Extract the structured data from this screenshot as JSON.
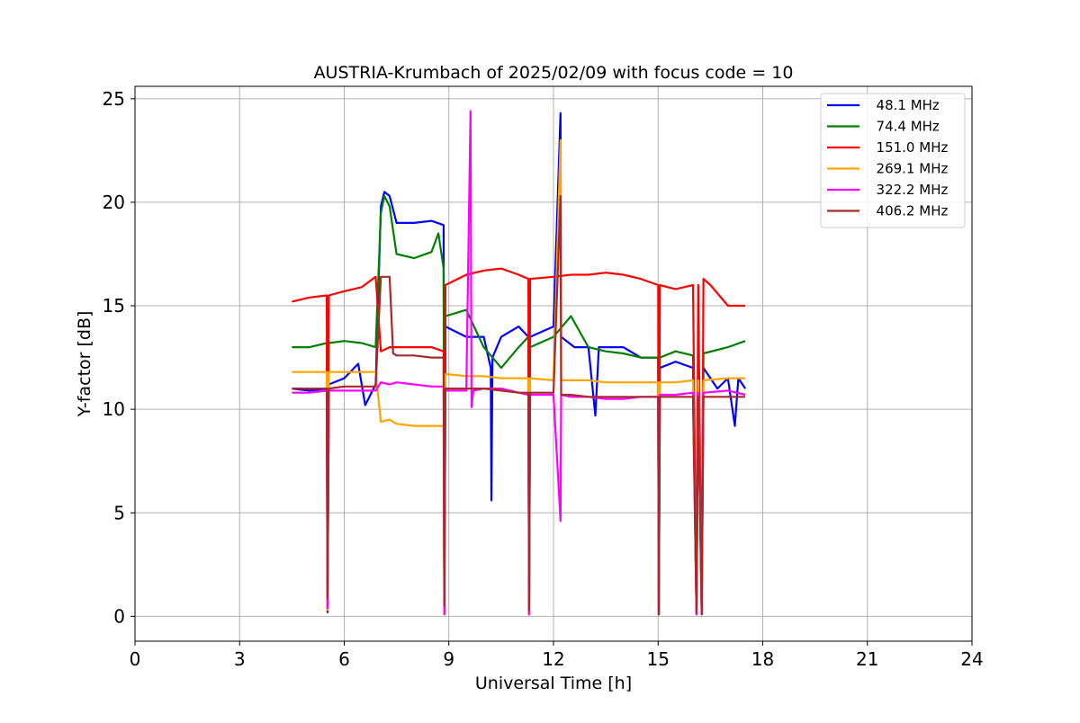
{
  "chart_data": {
    "type": "line",
    "title": "AUSTRIA-Krumbach of 2025/02/09 with focus code = 10",
    "xlabel": "Universal Time [h]",
    "ylabel": "Y-factor [dB]",
    "xlim": [
      0,
      24
    ],
    "ylim": [
      -1.2,
      25.6
    ],
    "xticks": [
      0,
      3,
      6,
      9,
      12,
      15,
      18,
      21,
      24
    ],
    "yticks": [
      0,
      5,
      10,
      15,
      20,
      25
    ],
    "grid": true,
    "legend_position": "top-right",
    "series": [
      {
        "name": "  48.1 MHz",
        "color": "#0000ff",
        "points": [
          [
            4.5,
            11.0
          ],
          [
            5.0,
            10.9
          ],
          [
            5.5,
            11.0
          ],
          [
            5.52,
            0.2
          ],
          [
            5.56,
            11.2
          ],
          [
            6.0,
            11.5
          ],
          [
            6.4,
            12.2
          ],
          [
            6.6,
            10.2
          ],
          [
            6.9,
            11.2
          ],
          [
            7.05,
            19.8
          ],
          [
            7.15,
            20.5
          ],
          [
            7.3,
            20.3
          ],
          [
            7.5,
            19.0
          ],
          [
            8.0,
            19.0
          ],
          [
            8.5,
            19.1
          ],
          [
            8.85,
            18.9
          ],
          [
            8.87,
            0.3
          ],
          [
            8.9,
            14.0
          ],
          [
            9.5,
            13.5
          ],
          [
            10.0,
            13.5
          ],
          [
            10.2,
            12.0
          ],
          [
            10.22,
            5.6
          ],
          [
            10.25,
            12.5
          ],
          [
            10.5,
            13.5
          ],
          [
            11.0,
            14.0
          ],
          [
            11.28,
            13.5
          ],
          [
            11.3,
            0.1
          ],
          [
            11.33,
            13.5
          ],
          [
            12.0,
            14.0
          ],
          [
            12.2,
            24.3
          ],
          [
            12.22,
            13.5
          ],
          [
            12.6,
            13.0
          ],
          [
            13.0,
            13.0
          ],
          [
            13.2,
            9.7
          ],
          [
            13.3,
            13.0
          ],
          [
            14.0,
            13.0
          ],
          [
            14.5,
            12.5
          ],
          [
            15.0,
            12.5
          ],
          [
            15.02,
            0.1
          ],
          [
            15.05,
            12.0
          ],
          [
            15.5,
            12.3
          ],
          [
            16.0,
            12.0
          ],
          [
            16.1,
            0.1
          ],
          [
            16.15,
            12.0
          ],
          [
            16.25,
            0.2
          ],
          [
            16.3,
            12.0
          ],
          [
            16.7,
            11.0
          ],
          [
            17.0,
            11.5
          ],
          [
            17.2,
            9.2
          ],
          [
            17.3,
            11.5
          ],
          [
            17.5,
            11.0
          ]
        ]
      },
      {
        "name": "  74.4 MHz",
        "color": "#008000",
        "points": [
          [
            4.5,
            13.0
          ],
          [
            5.0,
            13.0
          ],
          [
            5.5,
            13.2
          ],
          [
            5.52,
            0.8
          ],
          [
            5.56,
            13.2
          ],
          [
            6.0,
            13.3
          ],
          [
            6.5,
            13.2
          ],
          [
            6.9,
            13.0
          ],
          [
            7.05,
            19.5
          ],
          [
            7.15,
            20.3
          ],
          [
            7.3,
            19.8
          ],
          [
            7.5,
            17.5
          ],
          [
            8.0,
            17.3
          ],
          [
            8.5,
            17.6
          ],
          [
            8.7,
            18.5
          ],
          [
            8.85,
            16.8
          ],
          [
            8.87,
            0.6
          ],
          [
            8.9,
            14.5
          ],
          [
            9.5,
            14.8
          ],
          [
            10.0,
            13.0
          ],
          [
            10.5,
            12.0
          ],
          [
            11.0,
            13.0
          ],
          [
            11.28,
            13.5
          ],
          [
            11.3,
            0.1
          ],
          [
            11.33,
            13.0
          ],
          [
            12.0,
            13.5
          ],
          [
            12.5,
            14.5
          ],
          [
            13.0,
            13.0
          ],
          [
            13.5,
            12.8
          ],
          [
            14.0,
            12.7
          ],
          [
            14.5,
            12.5
          ],
          [
            15.0,
            12.5
          ],
          [
            15.02,
            0.1
          ],
          [
            15.05,
            12.5
          ],
          [
            15.5,
            12.8
          ],
          [
            16.0,
            12.6
          ],
          [
            16.1,
            0.1
          ],
          [
            16.15,
            12.6
          ],
          [
            16.25,
            0.1
          ],
          [
            16.3,
            12.7
          ],
          [
            17.0,
            13.0
          ],
          [
            17.5,
            13.3
          ]
        ]
      },
      {
        "name": "  151.0 MHz",
        "color": "#ff0000",
        "points": [
          [
            4.5,
            15.2
          ],
          [
            5.0,
            15.4
          ],
          [
            5.5,
            15.5
          ],
          [
            5.52,
            0.5
          ],
          [
            5.56,
            15.5
          ],
          [
            6.0,
            15.7
          ],
          [
            6.5,
            15.9
          ],
          [
            6.9,
            16.4
          ],
          [
            7.05,
            12.8
          ],
          [
            7.3,
            13.0
          ],
          [
            7.5,
            13.0
          ],
          [
            8.0,
            13.0
          ],
          [
            8.5,
            13.0
          ],
          [
            8.85,
            12.8
          ],
          [
            8.87,
            0.1
          ],
          [
            8.9,
            16.0
          ],
          [
            9.5,
            16.5
          ],
          [
            10.0,
            16.7
          ],
          [
            10.5,
            16.8
          ],
          [
            11.0,
            16.5
          ],
          [
            11.28,
            16.3
          ],
          [
            11.3,
            0.1
          ],
          [
            11.33,
            16.3
          ],
          [
            12.0,
            16.4
          ],
          [
            12.5,
            16.5
          ],
          [
            13.0,
            16.5
          ],
          [
            13.5,
            16.6
          ],
          [
            14.0,
            16.5
          ],
          [
            14.5,
            16.3
          ],
          [
            15.0,
            16.0
          ],
          [
            15.02,
            0.1
          ],
          [
            15.05,
            16.0
          ],
          [
            15.5,
            15.8
          ],
          [
            16.0,
            16.0
          ],
          [
            16.1,
            0.1
          ],
          [
            16.15,
            16.0
          ],
          [
            16.25,
            0.1
          ],
          [
            16.3,
            16.3
          ],
          [
            16.5,
            16.0
          ],
          [
            17.0,
            15.0
          ],
          [
            17.5,
            15.0
          ]
        ]
      },
      {
        "name": "  269.1 MHz",
        "color": "#ffa500",
        "points": [
          [
            4.5,
            11.8
          ],
          [
            5.0,
            11.8
          ],
          [
            5.5,
            11.8
          ],
          [
            5.52,
            0.3
          ],
          [
            5.56,
            11.8
          ],
          [
            6.0,
            11.8
          ],
          [
            6.5,
            11.8
          ],
          [
            6.9,
            11.8
          ],
          [
            7.05,
            9.4
          ],
          [
            7.3,
            9.5
          ],
          [
            7.5,
            9.3
          ],
          [
            8.0,
            9.2
          ],
          [
            8.5,
            9.2
          ],
          [
            8.85,
            9.2
          ],
          [
            8.87,
            0.1
          ],
          [
            8.9,
            11.7
          ],
          [
            9.5,
            11.6
          ],
          [
            10.0,
            11.6
          ],
          [
            10.5,
            11.5
          ],
          [
            11.0,
            11.5
          ],
          [
            11.28,
            11.5
          ],
          [
            11.3,
            0.1
          ],
          [
            11.33,
            11.5
          ],
          [
            12.0,
            11.4
          ],
          [
            12.2,
            23.0
          ],
          [
            12.22,
            11.4
          ],
          [
            12.5,
            11.4
          ],
          [
            13.0,
            11.4
          ],
          [
            13.5,
            11.3
          ],
          [
            14.0,
            11.3
          ],
          [
            14.5,
            11.3
          ],
          [
            15.0,
            11.3
          ],
          [
            15.02,
            0.1
          ],
          [
            15.05,
            11.3
          ],
          [
            15.5,
            11.3
          ],
          [
            16.0,
            11.4
          ],
          [
            16.1,
            0.1
          ],
          [
            16.15,
            11.4
          ],
          [
            16.25,
            0.1
          ],
          [
            16.3,
            11.4
          ],
          [
            17.0,
            11.5
          ],
          [
            17.5,
            11.5
          ]
        ]
      },
      {
        "name": "  322.2 MHz",
        "color": "#ff00ff",
        "points": [
          [
            4.5,
            10.8
          ],
          [
            5.0,
            10.8
          ],
          [
            5.5,
            10.9
          ],
          [
            5.52,
            0.4
          ],
          [
            5.56,
            10.9
          ],
          [
            6.0,
            10.9
          ],
          [
            6.5,
            10.9
          ],
          [
            6.9,
            10.9
          ],
          [
            7.05,
            11.3
          ],
          [
            7.3,
            11.2
          ],
          [
            7.5,
            11.3
          ],
          [
            8.0,
            11.2
          ],
          [
            8.5,
            11.1
          ],
          [
            8.85,
            11.1
          ],
          [
            8.87,
            0.1
          ],
          [
            8.9,
            10.9
          ],
          [
            9.5,
            10.9
          ],
          [
            9.62,
            24.4
          ],
          [
            9.65,
            10.1
          ],
          [
            9.7,
            10.9
          ],
          [
            10.0,
            11.0
          ],
          [
            10.5,
            11.0
          ],
          [
            11.0,
            10.8
          ],
          [
            11.28,
            10.7
          ],
          [
            11.3,
            0.1
          ],
          [
            11.33,
            10.7
          ],
          [
            12.0,
            10.7
          ],
          [
            12.2,
            4.6
          ],
          [
            12.22,
            10.7
          ],
          [
            12.5,
            10.6
          ],
          [
            13.0,
            10.6
          ],
          [
            13.5,
            10.5
          ],
          [
            14.0,
            10.5
          ],
          [
            14.5,
            10.6
          ],
          [
            15.0,
            10.6
          ],
          [
            15.02,
            0.1
          ],
          [
            15.05,
            10.7
          ],
          [
            15.5,
            10.7
          ],
          [
            16.0,
            10.8
          ],
          [
            16.1,
            0.1
          ],
          [
            16.15,
            10.8
          ],
          [
            16.25,
            0.1
          ],
          [
            16.3,
            10.8
          ],
          [
            17.0,
            10.9
          ],
          [
            17.5,
            10.7
          ]
        ]
      },
      {
        "name": "  406.2 MHz",
        "color": "#a52a2a",
        "points": [
          [
            4.5,
            11.0
          ],
          [
            5.0,
            11.0
          ],
          [
            5.5,
            11.0
          ],
          [
            5.52,
            0.9
          ],
          [
            5.56,
            11.0
          ],
          [
            6.0,
            11.1
          ],
          [
            6.5,
            11.1
          ],
          [
            6.9,
            11.1
          ],
          [
            7.05,
            16.4
          ],
          [
            7.3,
            16.4
          ],
          [
            7.4,
            12.7
          ],
          [
            7.5,
            12.6
          ],
          [
            8.0,
            12.6
          ],
          [
            8.5,
            12.5
          ],
          [
            8.85,
            12.5
          ],
          [
            8.87,
            0.5
          ],
          [
            8.9,
            11.0
          ],
          [
            9.5,
            11.0
          ],
          [
            10.0,
            11.0
          ],
          [
            10.5,
            10.9
          ],
          [
            11.0,
            10.8
          ],
          [
            11.28,
            10.8
          ],
          [
            11.3,
            0.3
          ],
          [
            11.33,
            10.8
          ],
          [
            12.0,
            10.8
          ],
          [
            12.2,
            20.3
          ],
          [
            12.22,
            10.7
          ],
          [
            12.5,
            10.7
          ],
          [
            13.0,
            10.6
          ],
          [
            13.5,
            10.6
          ],
          [
            14.0,
            10.6
          ],
          [
            14.5,
            10.6
          ],
          [
            15.0,
            10.6
          ],
          [
            15.02,
            0.1
          ],
          [
            15.05,
            10.6
          ],
          [
            15.5,
            10.6
          ],
          [
            16.0,
            10.6
          ],
          [
            16.1,
            0.2
          ],
          [
            16.15,
            10.6
          ],
          [
            16.25,
            0.1
          ],
          [
            16.3,
            10.6
          ],
          [
            17.0,
            10.6
          ],
          [
            17.5,
            10.6
          ]
        ]
      }
    ]
  }
}
